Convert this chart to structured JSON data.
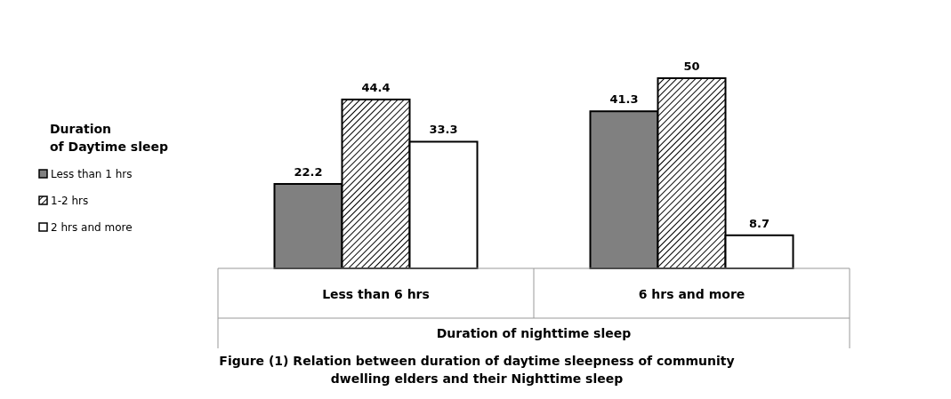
{
  "chart_data": {
    "type": "bar",
    "title": "Figure (1) Relation between duration of daytime sleepness of community dwelling elders and their Nighttime sleep",
    "xlabel": "Duration of nighttime sleep",
    "legend_title": "Duration of Daytime sleep",
    "categories": [
      "Less than 6 hrs",
      "6 hrs and more"
    ],
    "series": [
      {
        "name": "Less than 1 hrs",
        "color": "#808080",
        "values": [
          22.2,
          41.3
        ]
      },
      {
        "name": "1-2 hrs",
        "color": "#000000",
        "values": [
          44.4,
          50
        ]
      },
      {
        "name": "2 hrs and more",
        "color": "#ffffff",
        "values": [
          33.3,
          8.7
        ]
      }
    ],
    "data_labels": true,
    "legend": "left",
    "tick_labels": "x"
  }
}
